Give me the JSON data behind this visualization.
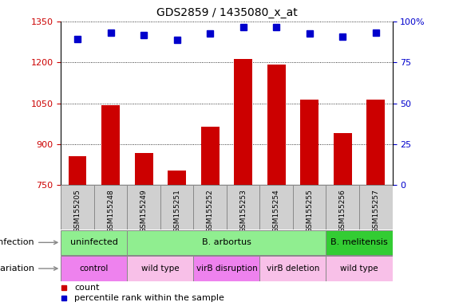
{
  "title": "GDS2859 / 1435080_x_at",
  "samples": [
    "GSM155205",
    "GSM155248",
    "GSM155249",
    "GSM155251",
    "GSM155252",
    "GSM155253",
    "GSM155254",
    "GSM155255",
    "GSM155256",
    "GSM155257"
  ],
  "counts": [
    855,
    1043,
    867,
    803,
    963,
    1213,
    1192,
    1063,
    940,
    1063
  ],
  "percentile_ranks": [
    1285,
    1308,
    1300,
    1282,
    1305,
    1330,
    1330,
    1307,
    1293,
    1310
  ],
  "ylim_left": [
    750,
    1350
  ],
  "ylim_right": [
    0,
    100
  ],
  "yticks_left": [
    750,
    900,
    1050,
    1200,
    1350
  ],
  "yticks_right": [
    0,
    25,
    50,
    75,
    100
  ],
  "bar_color": "#CC0000",
  "dot_color": "#0000CC",
  "infection_groups": [
    {
      "label": "uninfected",
      "start": 0,
      "end": 2,
      "color": "#90EE90"
    },
    {
      "label": "B. arbortus",
      "start": 2,
      "end": 8,
      "color": "#90EE90"
    },
    {
      "label": "B. melitensis",
      "start": 8,
      "end": 10,
      "color": "#33CC33"
    }
  ],
  "genotype_groups": [
    {
      "label": "control",
      "start": 0,
      "end": 2,
      "color": "#EE82EE"
    },
    {
      "label": "wild type",
      "start": 2,
      "end": 4,
      "color": "#F8C0E8"
    },
    {
      "label": "virB disruption",
      "start": 4,
      "end": 6,
      "color": "#EE82EE"
    },
    {
      "label": "virB deletion",
      "start": 6,
      "end": 8,
      "color": "#F8C0E8"
    },
    {
      "label": "wild type",
      "start": 8,
      "end": 10,
      "color": "#F8C0E8"
    }
  ],
  "tick_label_color_left": "#CC0000",
  "tick_label_color_right": "#0000CC",
  "grid_color": "#000000",
  "background_color": "#ffffff",
  "sample_label_bg": "#D0D0D0"
}
